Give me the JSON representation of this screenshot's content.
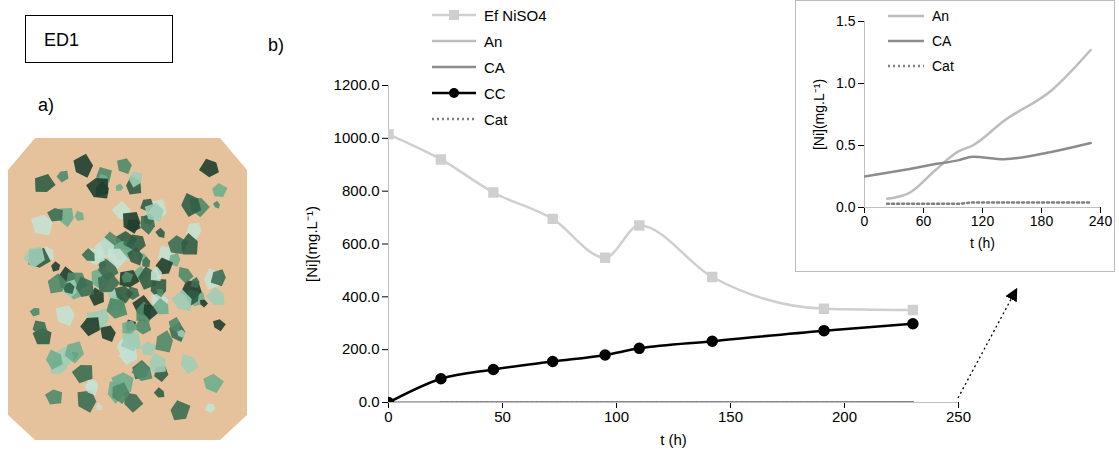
{
  "figure_label": "ED1",
  "panel_labels": [
    "a)",
    "b)"
  ],
  "chart_data": [
    {
      "type": "line",
      "x_label": "t (h)",
      "y_label": "[Ni](mg.L⁻¹)",
      "x": [
        0,
        23,
        46,
        72,
        95,
        110,
        142,
        191,
        230
      ],
      "xlim": [
        0,
        250
      ],
      "xticks": [
        0,
        50,
        100,
        150,
        200,
        250
      ],
      "ylim": [
        0,
        1200
      ],
      "yticks": [
        {
          "value": 0,
          "label": "0.0"
        },
        {
          "value": 200,
          "label": "200.0"
        },
        {
          "value": 400,
          "label": "400.0"
        },
        {
          "value": 600,
          "label": "600.0"
        },
        {
          "value": 800,
          "label": "800.0"
        },
        {
          "value": 1000,
          "label": "1000.0"
        },
        {
          "value": 1200,
          "label": "1200.0"
        }
      ],
      "grid": false,
      "legend": "top",
      "series": [
        {
          "name": "Ef NiSO4",
          "color": "#cfcfcf",
          "marker": "square",
          "line_style": "solid",
          "values": [
            1015,
            920,
            795,
            695,
            548,
            670,
            475,
            355,
            350
          ]
        },
        {
          "name": "An",
          "color": "#bdbdbd",
          "marker": "none",
          "line_style": "solid",
          "values": [
            null,
            0.07,
            0.12,
            0.3,
            0.45,
            0.5,
            0.7,
            0.95,
            1.27
          ]
        },
        {
          "name": "CA",
          "color": "#8c8c8c",
          "marker": "none",
          "line_style": "solid",
          "values": [
            0.25,
            0.28,
            0.31,
            0.35,
            0.38,
            0.41,
            0.39,
            0.45,
            0.52
          ]
        },
        {
          "name": "CC",
          "color": "#000000",
          "marker": "circle",
          "line_style": "solid",
          "values": [
            0,
            90,
            125,
            155,
            180,
            205,
            232,
            272,
            298
          ]
        },
        {
          "name": "Cat",
          "color": "#808080",
          "marker": "none",
          "line_style": "dotted",
          "values": [
            null,
            0.03,
            0.03,
            0.03,
            0.03,
            0.04,
            0.04,
            0.04,
            0.04
          ]
        }
      ]
    },
    {
      "type": "line",
      "x_label": "t (h)",
      "y_label": "[Ni](mg.L⁻¹)",
      "x": [
        0,
        23,
        46,
        72,
        95,
        110,
        142,
        191,
        230
      ],
      "xlim": [
        0,
        240
      ],
      "xticks": [
        0,
        60,
        120,
        180,
        240
      ],
      "ylim": [
        0,
        1.5
      ],
      "yticks": [
        {
          "value": 0,
          "label": "0.0"
        },
        {
          "value": 0.5,
          "label": "0.5"
        },
        {
          "value": 1,
          "label": "1.0"
        },
        {
          "value": 1.5,
          "label": "1.5"
        }
      ],
      "grid": false,
      "legend": "top-left",
      "series": [
        {
          "name": "An",
          "color": "#bdbdbd",
          "marker": "none",
          "line_style": "solid",
          "values": [
            null,
            0.07,
            0.12,
            0.3,
            0.45,
            0.5,
            0.7,
            0.95,
            1.27
          ]
        },
        {
          "name": "CA",
          "color": "#8c8c8c",
          "marker": "none",
          "line_style": "solid",
          "values": [
            0.25,
            0.28,
            0.31,
            0.35,
            0.38,
            0.41,
            0.39,
            0.45,
            0.52
          ]
        },
        {
          "name": "Cat",
          "color": "#808080",
          "marker": "none",
          "line_style": "dotted",
          "values": [
            null,
            0.03,
            0.03,
            0.03,
            0.03,
            0.04,
            0.04,
            0.04,
            0.04
          ]
        }
      ]
    }
  ]
}
